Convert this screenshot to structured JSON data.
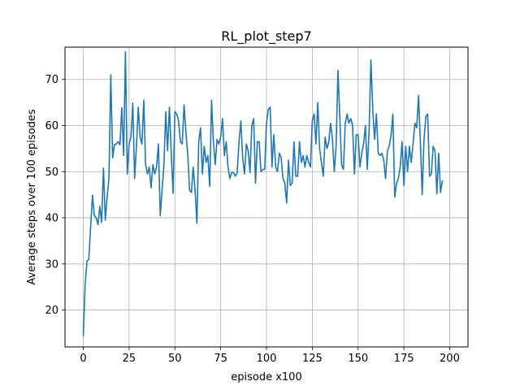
{
  "chart_data": {
    "type": "line",
    "title": "RL_plot_step7",
    "xlabel": "episode x100",
    "ylabel": "Average steps over 100 episodes",
    "xlim": [
      -10,
      210
    ],
    "ylim": [
      12,
      77
    ],
    "xticks": [
      0,
      25,
      50,
      75,
      100,
      125,
      150,
      175,
      200
    ],
    "yticks": [
      20,
      30,
      40,
      50,
      60,
      70
    ],
    "grid": true,
    "series": [
      {
        "color": "#1f77b4",
        "y": [
          14.5,
          25.5,
          30.6,
          31.0,
          38.0,
          44.9,
          40.5,
          40.0,
          38.5,
          42.5,
          39.0,
          50.8,
          39.5,
          44.5,
          48.5,
          71.0,
          53.0,
          55.9,
          56.0,
          56.5,
          55.8,
          63.9,
          53.5,
          76.0,
          49.5,
          56.0,
          57.5,
          64.9,
          48.5,
          55.5,
          64.0,
          57.5,
          56.0,
          65.5,
          51.5,
          49.5,
          51.0,
          46.5,
          51.5,
          49.5,
          51.0,
          56.0,
          40.5,
          46.0,
          51.5,
          63.0,
          54.5,
          64.0,
          54.0,
          45.3,
          63.0,
          62.5,
          61.0,
          56.5,
          56.0,
          64.5,
          58.5,
          54.0,
          46.0,
          45.5,
          51.0,
          46.0,
          38.8,
          56.5,
          59.5,
          49.5,
          55.5,
          52.0,
          53.5,
          46.8,
          65.5,
          56.5,
          51.5,
          57.0,
          56.0,
          57.5,
          61.5,
          53.5,
          56.5,
          51.0,
          48.5,
          49.8,
          49.8,
          49.0,
          49.8,
          56.5,
          61.0,
          53.0,
          49.5,
          56.0,
          54.5,
          49.8,
          60.0,
          61.5,
          47.5,
          56.5,
          56.5,
          50.0,
          50.5,
          50.5,
          60.5,
          63.5,
          64.0,
          51.0,
          58.0,
          51.0,
          50.0,
          54.0,
          53.0,
          48.5,
          47.5,
          43.2,
          52.5,
          47.0,
          47.5,
          56.5,
          49.0,
          49.0,
          56.5,
          52.0,
          53.5,
          51.0,
          53.5,
          52.0,
          51.0,
          61.0,
          62.5,
          56.0,
          65.0,
          55.0,
          52.0,
          49.0,
          57.5,
          55.0,
          56.5,
          60.5,
          57.0,
          50.0,
          55.5,
          72.0,
          62.0,
          51.5,
          50.5,
          60.5,
          62.5,
          60.5,
          61.5,
          60.0,
          49.5,
          58.0,
          58.0,
          51.0,
          54.0,
          56.0,
          60.0,
          50.5,
          58.5,
          74.2,
          63.5,
          57.0,
          62.5,
          54.0,
          53.5,
          54.0,
          52.5,
          48.5,
          54.5,
          55.5,
          58.0,
          62.5,
          44.5,
          47.5,
          48.5,
          51.0,
          56.5,
          47.0,
          55.5,
          50.0,
          55.5,
          52.0,
          56.0,
          60.5,
          59.5,
          66.5,
          56.5,
          45.0,
          57.0,
          62.0,
          62.5,
          49.0,
          49.5,
          55.5,
          54.5,
          45.2,
          54.0,
          45.5,
          48.0
        ]
      }
    ]
  }
}
